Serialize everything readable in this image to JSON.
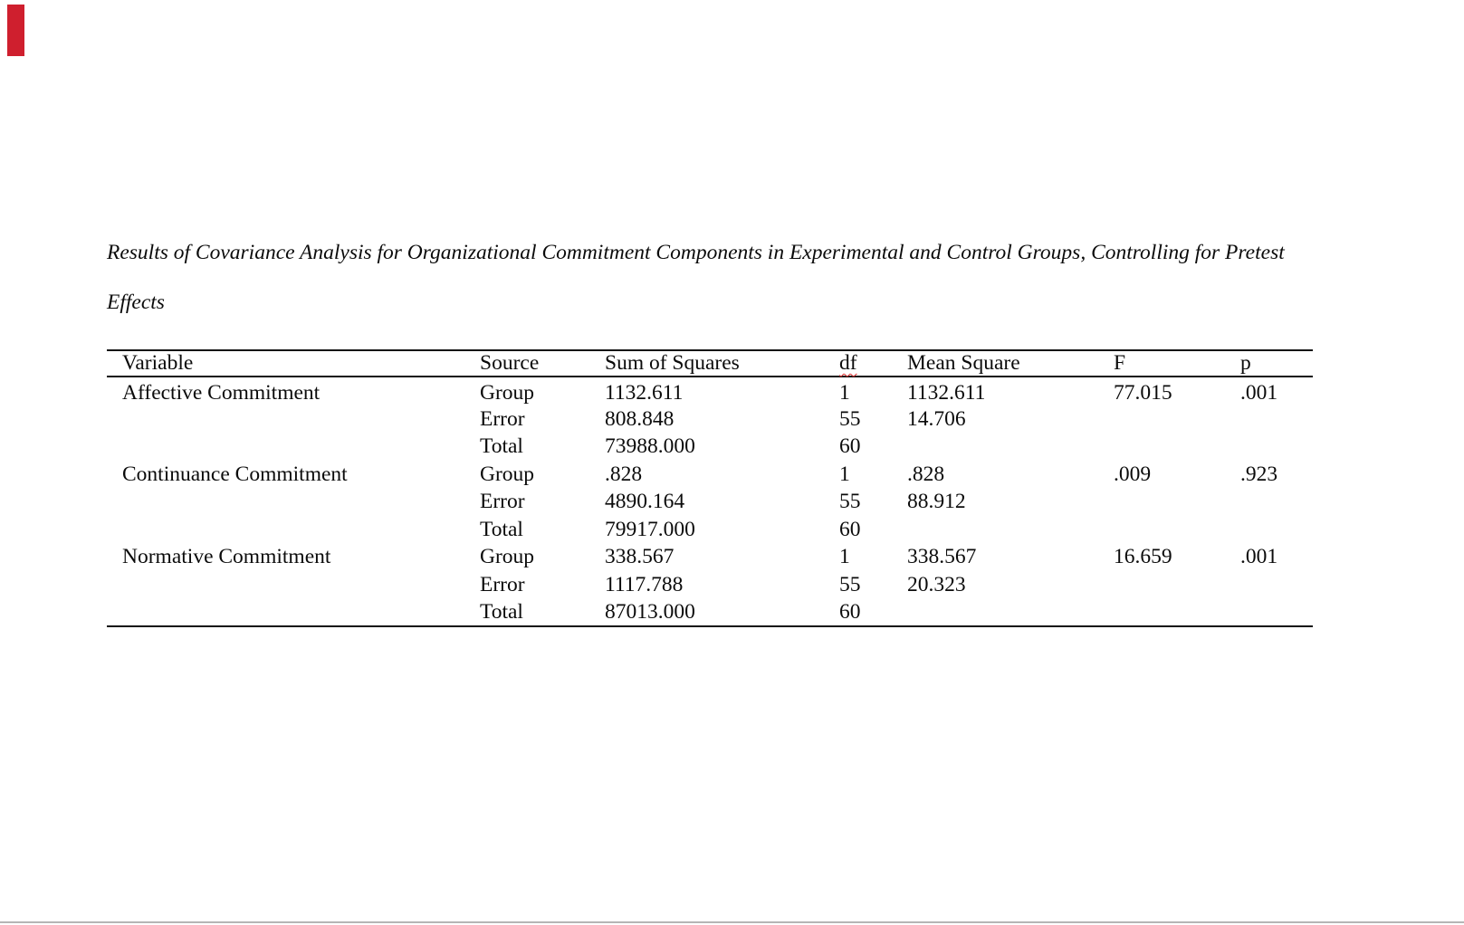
{
  "title": {
    "line1": "Results of Covariance Analysis for Organizational Commitment Components in Experimental and Control Groups, Controlling for Pretest",
    "line2": "Effects"
  },
  "colors": {
    "red_marker": "#cf1f2e",
    "spellcheck_squiggle": "#e03131",
    "bottom_divider": "#b5b5b5",
    "table_rule": "#111111"
  },
  "table": {
    "columns": [
      "Variable",
      "Source",
      "Sum of Squares",
      "df",
      "Mean Square",
      "F",
      "p"
    ],
    "rows": [
      {
        "variable": "Affective Commitment",
        "source": "Group",
        "sum_of_squares": "1132.611",
        "df": "1",
        "mean_square": "1132.611",
        "F": "77.015",
        "p": ".001"
      },
      {
        "variable": "",
        "source": "Error",
        "sum_of_squares": "808.848",
        "df": "55",
        "mean_square": "14.706",
        "F": "",
        "p": ""
      },
      {
        "variable": "",
        "source": "Total",
        "sum_of_squares": "73988.000",
        "df": "60",
        "mean_square": "",
        "F": "",
        "p": ""
      },
      {
        "variable": "Continuance Commitment",
        "source": "Group",
        "sum_of_squares": ".828",
        "df": "1",
        "mean_square": ".828",
        "F": ".009",
        "p": ".923"
      },
      {
        "variable": "",
        "source": "Error",
        "sum_of_squares": "4890.164",
        "df": "55",
        "mean_square": "88.912",
        "F": "",
        "p": ""
      },
      {
        "variable": "",
        "source": "Total",
        "sum_of_squares": "79917.000",
        "df": "60",
        "mean_square": "",
        "F": "",
        "p": ""
      },
      {
        "variable": "Normative Commitment",
        "source": "Group",
        "sum_of_squares": "338.567",
        "df": "1",
        "mean_square": "338.567",
        "F": "16.659",
        "p": ".001"
      },
      {
        "variable": "",
        "source": "Error",
        "sum_of_squares": "1117.788",
        "df": "55",
        "mean_square": "20.323",
        "F": "",
        "p": ""
      },
      {
        "variable": "",
        "source": "Total",
        "sum_of_squares": "87013.000",
        "df": "60",
        "mean_square": "",
        "F": "",
        "p": ""
      }
    ]
  }
}
